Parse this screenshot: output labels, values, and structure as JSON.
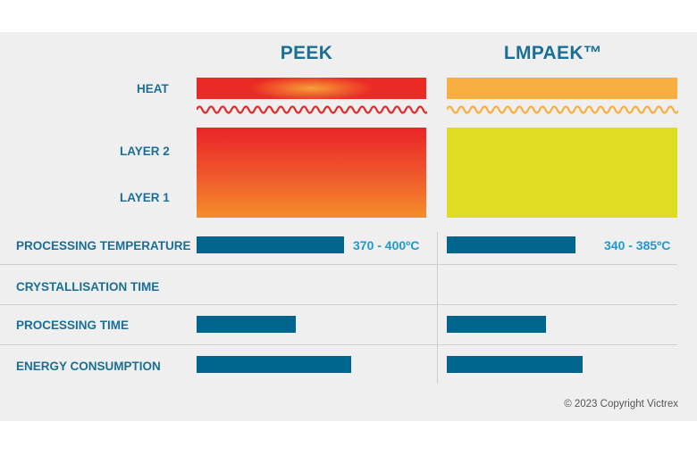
{
  "columns": {
    "peek": "PEEK",
    "lmpaek": "LMPAEK™"
  },
  "labels": {
    "heat": "HEAT",
    "layer2": "LAYER 2",
    "layer1": "LAYER 1",
    "processing_temperature": "PROCESSING TEMPERATURE",
    "crystallisation_time": "CRYSTALLISATION TIME",
    "processing_time": "PROCESSING TIME",
    "energy_consumption": "ENERGY CONSUMPTION"
  },
  "values": {
    "peek_temperature": "370 - 400ºC",
    "lmpaek_temperature": "340 - 385ºC"
  },
  "bars": {
    "peek": {
      "processing_temperature": 0.64,
      "processing_time": 0.43,
      "energy_consumption": 0.67
    },
    "lmpaek": {
      "processing_temperature": 0.56,
      "processing_time": 0.43,
      "energy_consumption": 0.59
    }
  },
  "colors": {
    "title": "#1b6f95",
    "bar": "#00658c",
    "value": "#1f99d0",
    "peek_wave": "#e22a2a",
    "lmpaek_wave": "#f8ae40",
    "lmpaek_layer": "#dedd21"
  },
  "copyright": "© 2023 Copyright Victrex"
}
